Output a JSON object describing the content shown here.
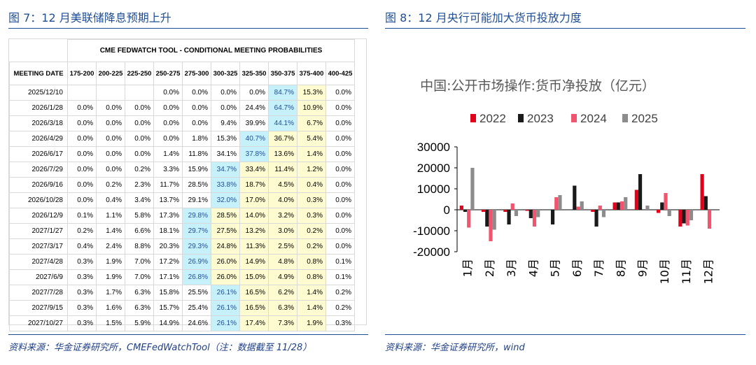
{
  "left_figure": {
    "title": "图 7：12 月美联储降息预期上升",
    "source": "资料来源：华金证券研究所，CMEFedWatchTool（注：数据截至 11/28）"
  },
  "right_figure": {
    "title": "图 8：12 月央行可能加大货币投放力度",
    "source": "资料来源：华金证券研究所，wind"
  },
  "chart_data": [
    {
      "type": "table",
      "title": "CME FEDWATCH TOOL - CONDITIONAL MEETING PROBABILITIES",
      "columns": [
        "MEETING DATE",
        "175-200",
        "200-225",
        "225-250",
        "250-275",
        "275-300",
        "300-325",
        "325-350",
        "350-375",
        "375-400",
        "400-425"
      ],
      "rows": [
        {
          "date": "2025/12/10",
          "values": [
            "",
            "",
            "",
            "0.0%",
            "0.0%",
            "0.0%",
            "0.0%",
            "84.7%",
            "15.3%",
            "0.0%"
          ]
        },
        {
          "date": "2026/1/28",
          "values": [
            "0.0%",
            "0.0%",
            "0.0%",
            "0.0%",
            "0.0%",
            "0.0%",
            "24.4%",
            "64.7%",
            "10.9%",
            "0.0%"
          ]
        },
        {
          "date": "2026/3/18",
          "values": [
            "0.0%",
            "0.0%",
            "0.0%",
            "0.0%",
            "0.0%",
            "9.4%",
            "39.9%",
            "44.1%",
            "6.7%",
            "0.0%"
          ]
        },
        {
          "date": "2026/4/29",
          "values": [
            "0.0%",
            "0.0%",
            "0.0%",
            "0.0%",
            "1.8%",
            "15.3%",
            "40.7%",
            "36.7%",
            "5.4%",
            "0.0%"
          ]
        },
        {
          "date": "2026/6/17",
          "values": [
            "0.0%",
            "0.0%",
            "0.0%",
            "1.4%",
            "11.8%",
            "34.1%",
            "37.8%",
            "13.6%",
            "1.4%",
            "0.0%"
          ]
        },
        {
          "date": "2026/7/29",
          "values": [
            "0.0%",
            "0.0%",
            "0.2%",
            "3.3%",
            "15.9%",
            "34.7%",
            "33.4%",
            "11.4%",
            "1.2%",
            "0.0%"
          ]
        },
        {
          "date": "2026/9/16",
          "values": [
            "0.0%",
            "0.2%",
            "2.3%",
            "11.7%",
            "28.5%",
            "33.8%",
            "18.7%",
            "4.5%",
            "0.4%",
            "0.0%"
          ]
        },
        {
          "date": "2026/10/28",
          "values": [
            "0.0%",
            "0.4%",
            "3.4%",
            "13.7%",
            "29.1%",
            "32.0%",
            "17.0%",
            "4.0%",
            "0.3%",
            "0.0%"
          ]
        },
        {
          "date": "2026/12/9",
          "values": [
            "0.1%",
            "1.1%",
            "5.8%",
            "17.3%",
            "29.8%",
            "28.5%",
            "14.0%",
            "3.2%",
            "0.3%",
            "0.0%"
          ]
        },
        {
          "date": "2027/1/27",
          "values": [
            "0.2%",
            "1.4%",
            "6.6%",
            "18.1%",
            "29.7%",
            "27.5%",
            "13.2%",
            "3.0%",
            "0.2%",
            "0.0%"
          ]
        },
        {
          "date": "2027/3/17",
          "values": [
            "0.4%",
            "2.4%",
            "8.8%",
            "20.3%",
            "29.3%",
            "24.8%",
            "11.3%",
            "2.5%",
            "0.2%",
            "0.0%"
          ]
        },
        {
          "date": "2027/4/28",
          "values": [
            "0.3%",
            "1.9%",
            "7.0%",
            "17.2%",
            "26.9%",
            "26.0%",
            "14.9%",
            "4.8%",
            "0.8%",
            "0.1%"
          ]
        },
        {
          "date": "2027/6/9",
          "values": [
            "0.3%",
            "1.9%",
            "7.0%",
            "17.1%",
            "26.8%",
            "26.0%",
            "15.0%",
            "4.9%",
            "0.8%",
            "0.1%"
          ]
        },
        {
          "date": "2027/7/28",
          "values": [
            "0.3%",
            "1.7%",
            "6.3%",
            "15.8%",
            "25.5%",
            "26.1%",
            "16.5%",
            "6.2%",
            "1.4%",
            "0.2%"
          ]
        },
        {
          "date": "2027/9/15",
          "values": [
            "0.3%",
            "1.6%",
            "6.3%",
            "15.7%",
            "25.4%",
            "26.1%",
            "16.5%",
            "6.3%",
            "1.4%",
            "0.2%"
          ]
        },
        {
          "date": "2027/10/27",
          "values": [
            "0.3%",
            "1.5%",
            "5.9%",
            "14.9%",
            "24.6%",
            "26.1%",
            "17.4%",
            "7.3%",
            "1.9%",
            "0.3%"
          ]
        }
      ],
      "highlight": {
        "blue": [
          [
            0,
            7
          ],
          [
            1,
            7
          ],
          [
            2,
            7
          ],
          [
            3,
            6
          ],
          [
            4,
            6
          ],
          [
            5,
            5
          ],
          [
            6,
            5
          ],
          [
            7,
            5
          ],
          [
            8,
            4
          ],
          [
            9,
            4
          ],
          [
            10,
            4
          ],
          [
            11,
            4
          ],
          [
            12,
            4
          ],
          [
            13,
            5
          ],
          [
            14,
            5
          ],
          [
            15,
            5
          ]
        ],
        "yellow": [
          [
            0,
            8
          ],
          [
            1,
            8
          ],
          [
            2,
            8
          ],
          [
            3,
            7
          ],
          [
            3,
            8
          ],
          [
            4,
            7
          ],
          [
            4,
            8
          ],
          [
            5,
            6
          ],
          [
            5,
            7
          ],
          [
            5,
            8
          ],
          [
            6,
            6
          ],
          [
            6,
            7
          ],
          [
            6,
            8
          ],
          [
            7,
            6
          ],
          [
            7,
            7
          ],
          [
            7,
            8
          ],
          [
            8,
            5
          ],
          [
            8,
            6
          ],
          [
            8,
            7
          ],
          [
            8,
            8
          ],
          [
            9,
            5
          ],
          [
            9,
            6
          ],
          [
            9,
            7
          ],
          [
            9,
            8
          ],
          [
            10,
            5
          ],
          [
            10,
            6
          ],
          [
            10,
            7
          ],
          [
            10,
            8
          ],
          [
            11,
            5
          ],
          [
            11,
            6
          ],
          [
            11,
            7
          ],
          [
            11,
            8
          ],
          [
            12,
            5
          ],
          [
            12,
            6
          ],
          [
            12,
            7
          ],
          [
            12,
            8
          ],
          [
            13,
            6
          ],
          [
            13,
            7
          ],
          [
            13,
            8
          ],
          [
            14,
            6
          ],
          [
            14,
            7
          ],
          [
            14,
            8
          ],
          [
            15,
            6
          ],
          [
            15,
            7
          ],
          [
            15,
            8
          ]
        ]
      },
      "colors": {
        "blue": "#c6f0fa",
        "yellow": "#fdfbcf"
      }
    },
    {
      "type": "bar",
      "title": "中国:公开市场操作:货币净投放（亿元）",
      "categories": [
        "1月",
        "2月",
        "3月",
        "4月",
        "5月",
        "6月",
        "7月",
        "8月",
        "9月",
        "10月",
        "11月",
        "12月"
      ],
      "series": [
        {
          "name": "2022",
          "color": "#e3001b",
          "values": [
            2000,
            -1000,
            -1000,
            -500,
            0,
            0,
            -1000,
            3500,
            9500,
            -1500,
            -8000,
            17000
          ]
        },
        {
          "name": "2023",
          "color": "#1a1a1a",
          "values": [
            -1000,
            -8000,
            -7000,
            -4000,
            -7000,
            11500,
            -8000,
            3500,
            17000,
            3500,
            -6500,
            6500
          ]
        },
        {
          "name": "2024",
          "color": "#f0546f",
          "values": [
            -8500,
            -15000,
            3000,
            -8000,
            6000,
            1500,
            2000,
            4000,
            0,
            8000,
            -7500,
            -9000
          ]
        },
        {
          "name": "2025",
          "color": "#8c8c8c",
          "values": [
            20000,
            -9500,
            -3000,
            -3500,
            7000,
            4000,
            -3500,
            6000,
            2000,
            -3000,
            -5000,
            0
          ]
        }
      ],
      "ylim": [
        -20000,
        30000
      ],
      "yticks": [
        "30000",
        "20000",
        "10000",
        "0",
        "-10000",
        "-20000"
      ],
      "legend_position": "top"
    }
  ]
}
